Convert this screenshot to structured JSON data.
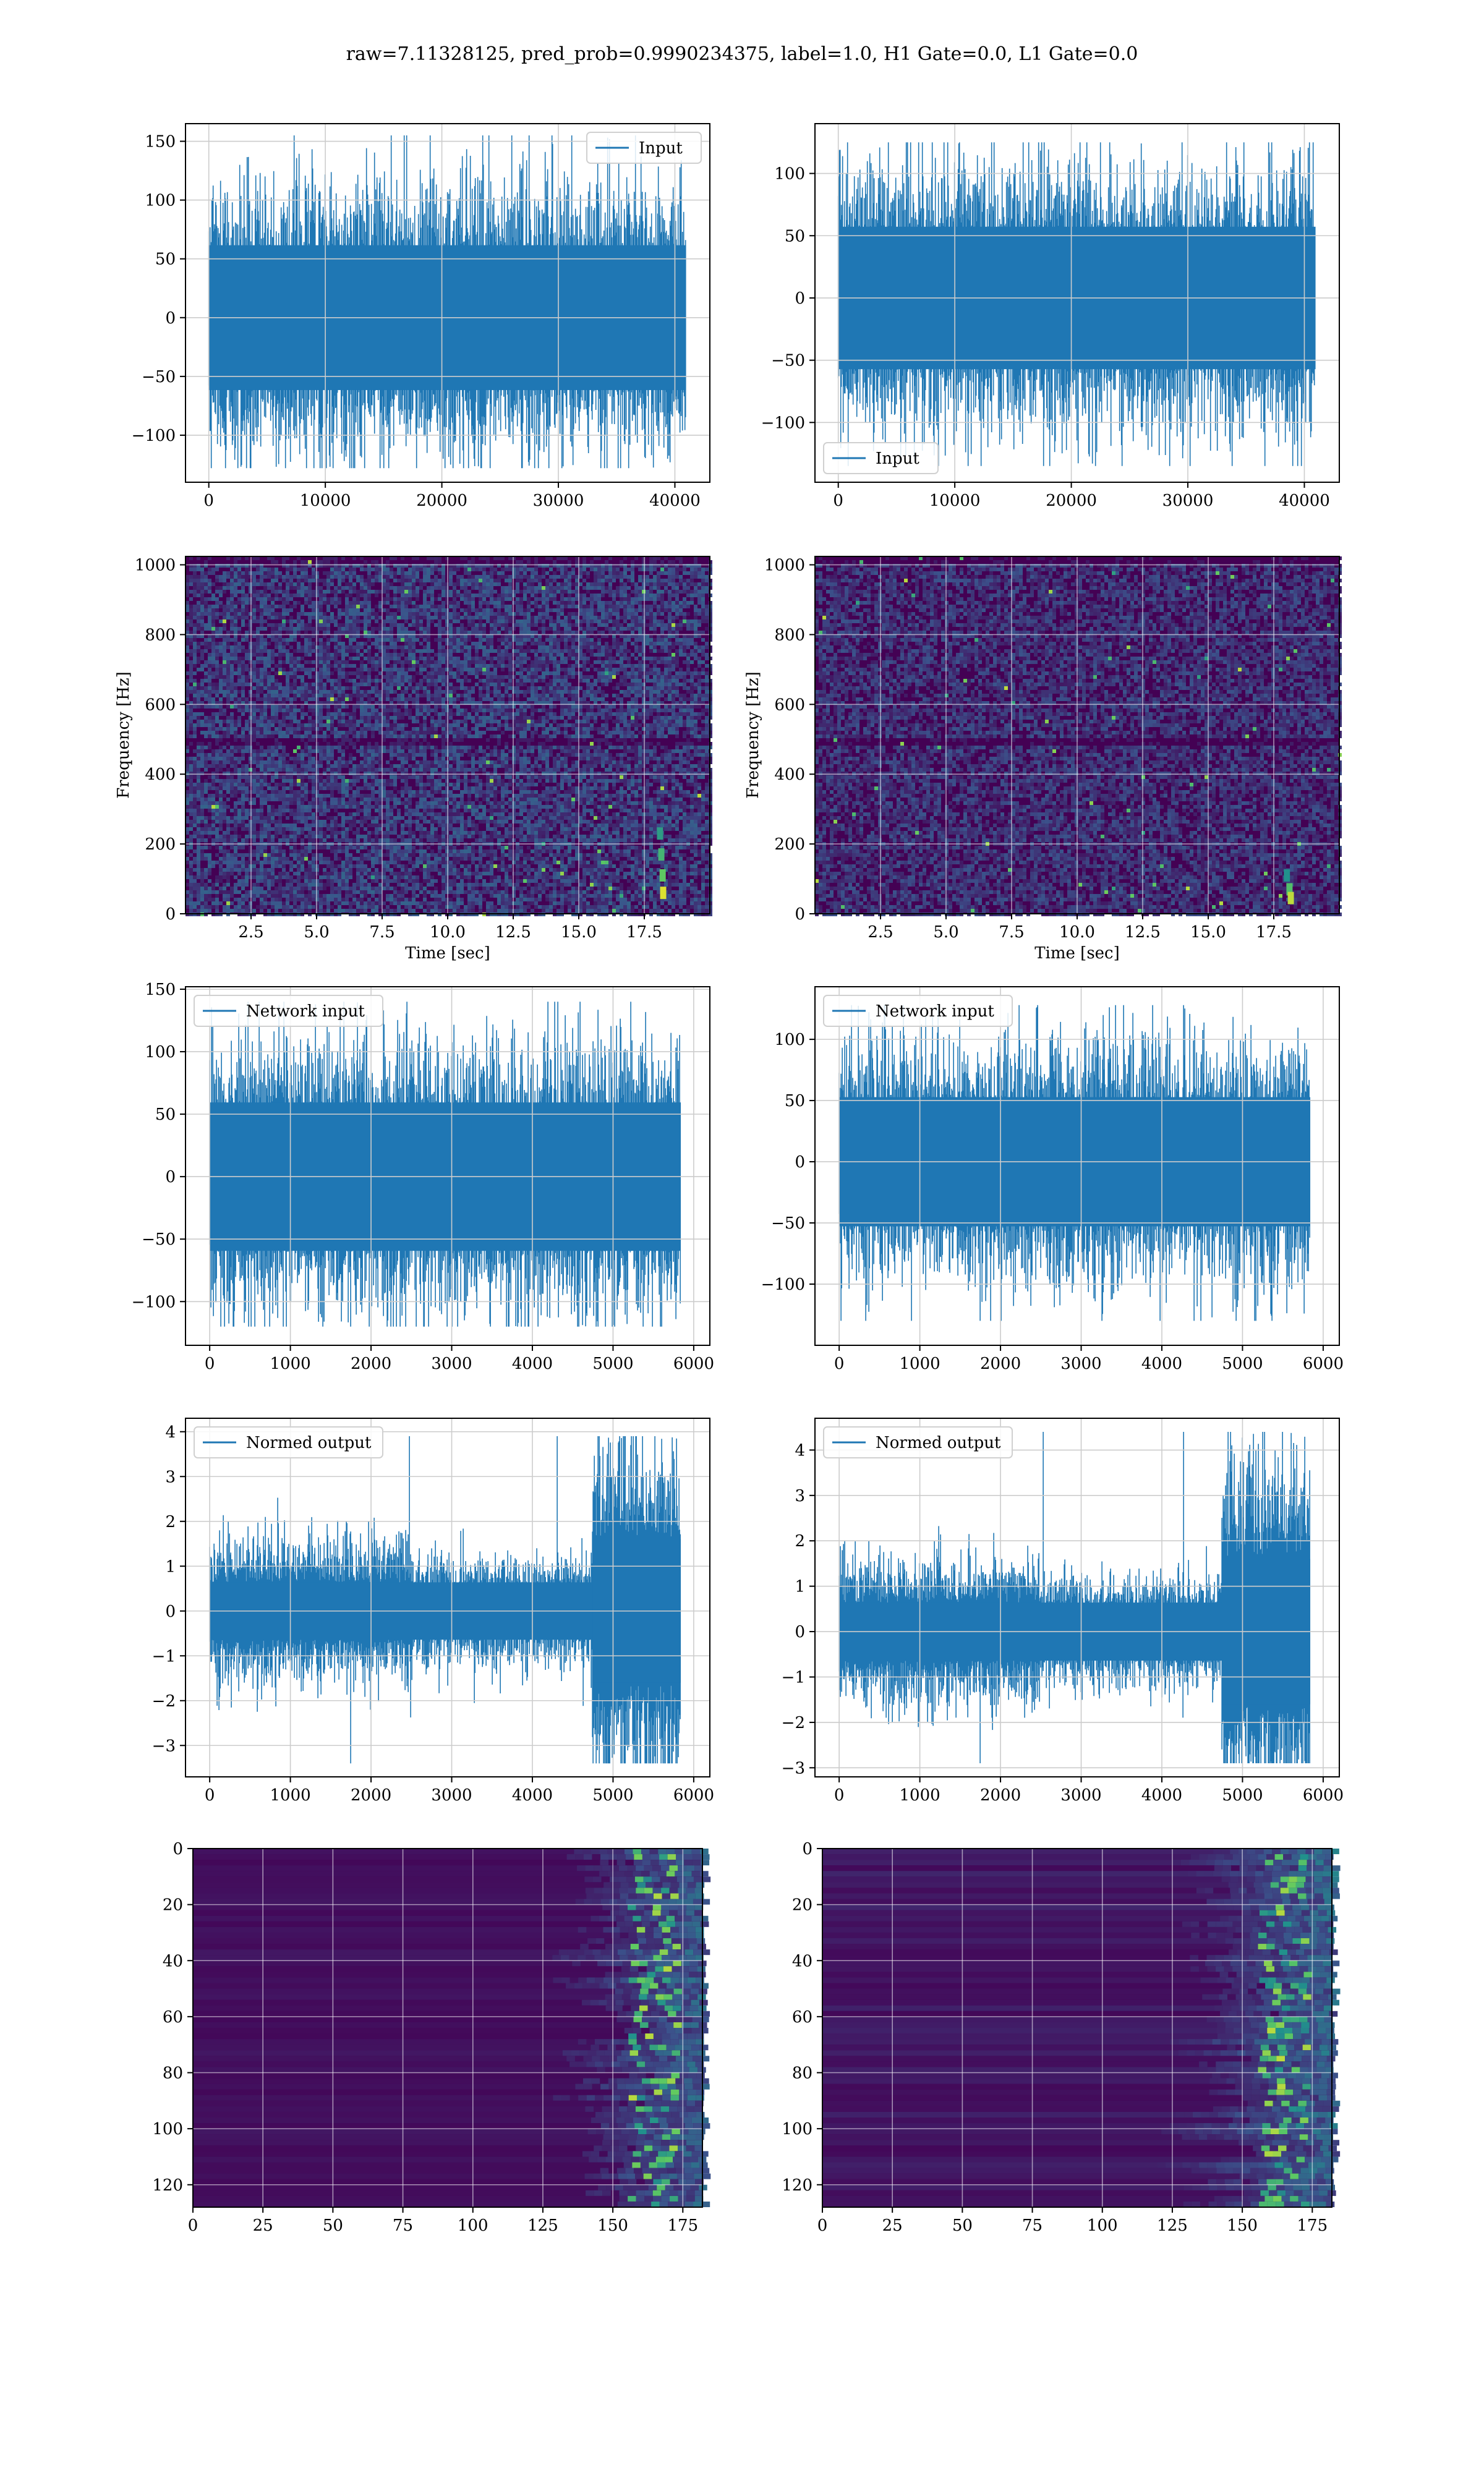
{
  "title": "raw=7.11328125, pred_prob=0.9990234375, label=1.0, H1 Gate=0.0, L1 Gate=0.0",
  "colors": {
    "line": "#1f77b4",
    "grid": "#cccccc",
    "viridis_bg": "#440154"
  },
  "chart_data": [
    {
      "id": "input-h1",
      "type": "line",
      "legend": "Input",
      "legend_loc": "upper right",
      "xlim": [
        -2000,
        43000
      ],
      "ylim": [
        -140,
        165
      ],
      "xticks": [
        0,
        10000,
        20000,
        30000,
        40000
      ],
      "yticks": [
        -100,
        -50,
        0,
        50,
        100,
        150
      ],
      "x_range": [
        0,
        40960
      ],
      "noise_std": 28,
      "peak_max": 155,
      "peak_min": -128
    },
    {
      "id": "input-l1",
      "type": "line",
      "legend": "Input",
      "legend_loc": "lower left",
      "xlim": [
        -2000,
        43000
      ],
      "ylim": [
        -148,
        140
      ],
      "xticks": [
        0,
        10000,
        20000,
        30000,
        40000
      ],
      "yticks": [
        -100,
        -50,
        0,
        50,
        100
      ],
      "x_range": [
        0,
        40960
      ],
      "noise_std": 26,
      "peak_max": 125,
      "peak_min": -135
    },
    {
      "id": "spec-h1",
      "type": "heatmap",
      "xlabel": "Time [sec]",
      "ylabel": "Frequency [Hz]",
      "xlim": [
        0,
        20
      ],
      "ylim": [
        0,
        1024
      ],
      "xticks": [
        2.5,
        5.0,
        7.5,
        10.0,
        12.5,
        15.0,
        17.5
      ],
      "yticks": [
        0,
        200,
        400,
        600,
        800,
        1000
      ],
      "xtick_labels": [
        "2.5",
        "5.0",
        "7.5",
        "10.0",
        "12.5",
        "15.0",
        "17.5"
      ]
    },
    {
      "id": "spec-l1",
      "type": "heatmap",
      "xlabel": "Time [sec]",
      "ylabel": "Frequency [Hz]",
      "xlim": [
        0,
        20
      ],
      "ylim": [
        0,
        1024
      ],
      "xticks": [
        2.5,
        5.0,
        7.5,
        10.0,
        12.5,
        15.0,
        17.5
      ],
      "yticks": [
        0,
        200,
        400,
        600,
        800,
        1000
      ],
      "xtick_labels": [
        "2.5",
        "5.0",
        "7.5",
        "10.0",
        "12.5",
        "15.0",
        "17.5"
      ]
    },
    {
      "id": "netin-h1",
      "type": "line",
      "legend": "Network input",
      "legend_loc": "upper left",
      "xlim": [
        -300,
        6200
      ],
      "ylim": [
        -135,
        152
      ],
      "xticks": [
        0,
        1000,
        2000,
        3000,
        4000,
        5000,
        6000
      ],
      "yticks": [
        -100,
        -50,
        0,
        50,
        100,
        150
      ],
      "x_range": [
        0,
        5840
      ],
      "noise_std": 27,
      "peak_max": 140,
      "peak_min": -120
    },
    {
      "id": "netin-l1",
      "type": "line",
      "legend": "Network input",
      "legend_loc": "upper left",
      "xlim": [
        -300,
        6200
      ],
      "ylim": [
        -150,
        143
      ],
      "xticks": [
        0,
        1000,
        2000,
        3000,
        4000,
        5000,
        6000
      ],
      "yticks": [
        -100,
        -50,
        0,
        50,
        100
      ],
      "x_range": [
        0,
        5840
      ],
      "noise_std": 24,
      "peak_max": 128,
      "peak_min": -130
    },
    {
      "id": "normed-h1",
      "type": "line",
      "legend": "Normed output",
      "legend_loc": "upper left",
      "xlim": [
        -300,
        6200
      ],
      "ylim": [
        -3.7,
        4.3
      ],
      "xticks": [
        0,
        1000,
        2000,
        3000,
        4000,
        5000,
        6000
      ],
      "yticks": [
        -3,
        -2,
        -1,
        0,
        1,
        2,
        3,
        4
      ],
      "x_range": [
        0,
        5840
      ],
      "noise_std": 0.4,
      "peak_max": 3.9,
      "peak_min": -3.4,
      "burst_start": 4750
    },
    {
      "id": "normed-l1",
      "type": "line",
      "legend": "Normed output",
      "legend_loc": "upper left",
      "xlim": [
        -300,
        6200
      ],
      "ylim": [
        -3.2,
        4.7
      ],
      "xticks": [
        0,
        1000,
        2000,
        3000,
        4000,
        5000,
        6000
      ],
      "yticks": [
        -3,
        -2,
        -1,
        0,
        1,
        2,
        3,
        4
      ],
      "x_range": [
        0,
        5840
      ],
      "noise_std": 0.4,
      "peak_max": 4.4,
      "peak_min": -2.9,
      "burst_start": 4750
    },
    {
      "id": "feat-h1",
      "type": "heatmap",
      "xlim": [
        0,
        182
      ],
      "ylim": [
        128,
        0
      ],
      "xticks": [
        0,
        25,
        50,
        75,
        100,
        125,
        150,
        175
      ],
      "yticks": [
        0,
        20,
        40,
        60,
        80,
        100,
        120
      ]
    },
    {
      "id": "feat-l1",
      "type": "heatmap",
      "xlim": [
        0,
        182
      ],
      "ylim": [
        128,
        0
      ],
      "xticks": [
        0,
        25,
        50,
        75,
        100,
        125,
        150,
        175
      ],
      "yticks": [
        0,
        20,
        40,
        60,
        80,
        100,
        120
      ]
    }
  ]
}
